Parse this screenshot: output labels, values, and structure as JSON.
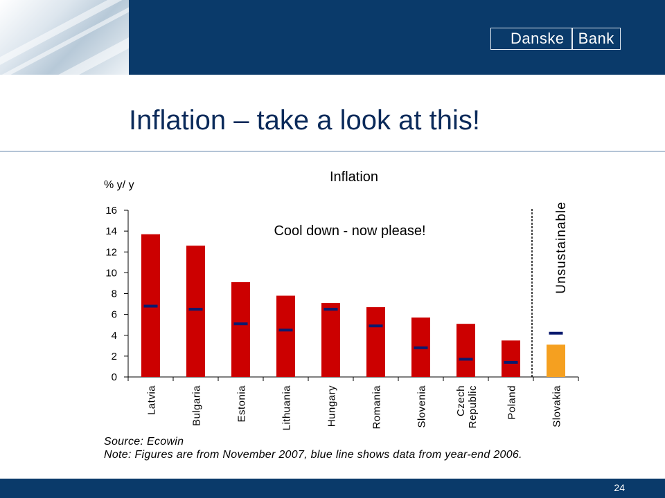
{
  "header": {
    "logo_text_1": "Danske",
    "logo_text_2": "Bank"
  },
  "slide": {
    "title": "Inflation – take a look at this!",
    "source": "Source: Ecowin",
    "note": "Note: Figures are from November 2007, blue line shows data from year-end 2006.",
    "page_number": "24"
  },
  "chart_data": {
    "type": "bar",
    "title": "Inflation",
    "ylabel": "% y/ y",
    "xlabel": "",
    "ylim": [
      0,
      16
    ],
    "yticks": [
      0,
      2,
      4,
      6,
      8,
      10,
      12,
      14,
      16
    ],
    "grid": false,
    "categories": [
      "Latvia",
      "Bulgaria",
      "Estonia",
      "Lithuania",
      "Hungary",
      "Romania",
      "Slovenia",
      "Czech Republic",
      "Poland",
      "Slovakia"
    ],
    "series": [
      {
        "values": [
          13.7,
          12.6,
          9.1,
          7.8,
          7.1,
          6.7,
          5.7,
          5.1,
          3.5,
          3.1
        ]
      },
      {
        "values": [
          6.8,
          6.5,
          5.1,
          4.5,
          6.5,
          4.9,
          2.8,
          1.7,
          1.4,
          4.2
        ]
      }
    ],
    "bar_colors": [
      "#cc0000",
      "#cc0000",
      "#cc0000",
      "#cc0000",
      "#cc0000",
      "#cc0000",
      "#cc0000",
      "#cc0000",
      "#cc0000",
      "#f5a020"
    ],
    "marker_color": "#0b1a6e",
    "annotations": {
      "cool_down": "Cool down - now please!",
      "unsustainable": "Unsustainable"
    }
  }
}
